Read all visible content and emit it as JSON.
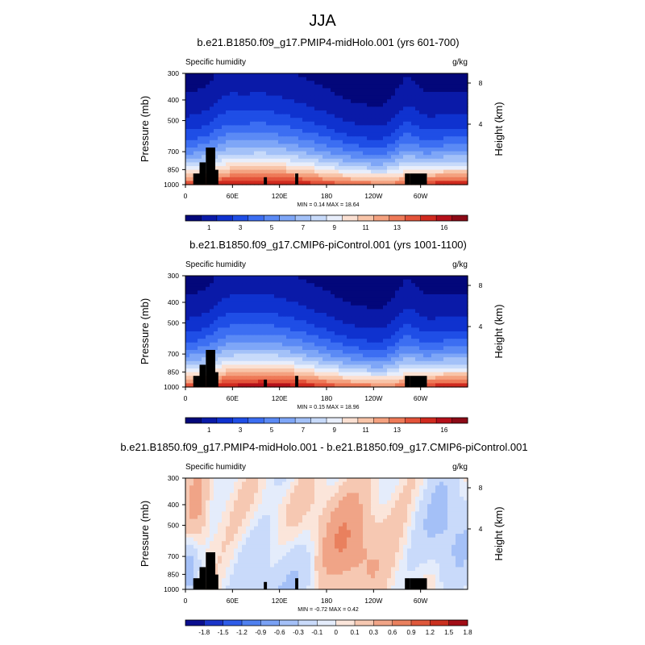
{
  "figure": {
    "title": "JJA",
    "width_label": "",
    "palette": {
      "abs": [
        "#03077a",
        "#0a1aa8",
        "#0f32cf",
        "#1f4ee6",
        "#3c6ef2",
        "#5b8af5",
        "#7ea6f7",
        "#a3c1f8",
        "#c7dafa",
        "#e8eefb",
        "#fbe0d2",
        "#f8c4a8",
        "#f4a17f",
        "#ee7a58",
        "#e3533a",
        "#d02a1f",
        "#b5101a",
        "#8c0a16"
      ],
      "diff": [
        "#0a0e8e",
        "#1a35c8",
        "#2e5ce8",
        "#4f80ef",
        "#7aa1f4",
        "#a4c0f7",
        "#c9dafa",
        "#e4ecfb",
        "#fbe5da",
        "#f6c8b2",
        "#f0a487",
        "#e9805e",
        "#de583c",
        "#c9301f",
        "#a20d16"
      ]
    }
  },
  "chart_data": [
    {
      "id": "panel1",
      "type": "heatmap",
      "title": "b.e21.B1850.f09_g17.PMIP4-midHolo.001 (yrs 601-700)",
      "left_label": "Specific humidity",
      "right_label": "g/kg",
      "ylabel": "Pressure (mb)",
      "y2label": "Height (km)",
      "xlim": [
        0,
        360
      ],
      "ylim": [
        1000,
        300
      ],
      "x_ticks": [
        "0",
        "60E",
        "120E",
        "180",
        "120W",
        "60W"
      ],
      "x_tick_values": [
        0,
        60,
        120,
        180,
        240,
        300
      ],
      "y_ticks": [
        "300",
        "400",
        "500",
        "700",
        "850",
        "1000"
      ],
      "y_tick_values": [
        300,
        400,
        500,
        700,
        850,
        1000
      ],
      "y2_ticks": [
        "8",
        "4"
      ],
      "minmax_text": "MIN =  0.14  MAX =  18.64",
      "min": 0.14,
      "max": 18.64,
      "levels": [
        0,
        1,
        2,
        3,
        4,
        5,
        6,
        7,
        8,
        9,
        10,
        11,
        12,
        13,
        14,
        15,
        16,
        17
      ],
      "colorbar_labels": [
        "1",
        "3",
        "5",
        "7",
        "9",
        "11",
        "13",
        "16"
      ],
      "colorbar_label_values": [
        1,
        3,
        5,
        7,
        9,
        11,
        13,
        16
      ],
      "cmap": "abs"
    },
    {
      "id": "panel2",
      "type": "heatmap",
      "title": "b.e21.B1850.f09_g17.CMIP6-piControl.001 (yrs 1001-1100)",
      "left_label": "Specific humidity",
      "right_label": "g/kg",
      "ylabel": "Pressure (mb)",
      "y2label": "Height (km)",
      "xlim": [
        0,
        360
      ],
      "ylim": [
        1000,
        300
      ],
      "x_ticks": [
        "0",
        "60E",
        "120E",
        "180",
        "120W",
        "60W"
      ],
      "x_tick_values": [
        0,
        60,
        120,
        180,
        240,
        300
      ],
      "y_ticks": [
        "300",
        "400",
        "500",
        "700",
        "850",
        "1000"
      ],
      "y_tick_values": [
        300,
        400,
        500,
        700,
        850,
        1000
      ],
      "y2_ticks": [
        "8",
        "4"
      ],
      "minmax_text": "MIN =  0.15  MAX =  18.96",
      "min": 0.15,
      "max": 18.96,
      "levels": [
        0,
        1,
        2,
        3,
        4,
        5,
        6,
        7,
        8,
        9,
        10,
        11,
        12,
        13,
        14,
        15,
        16,
        17
      ],
      "colorbar_labels": [
        "1",
        "3",
        "5",
        "7",
        "9",
        "11",
        "13",
        "16"
      ],
      "colorbar_label_values": [
        1,
        3,
        5,
        7,
        9,
        11,
        13,
        16
      ],
      "cmap": "abs"
    },
    {
      "id": "panel3",
      "type": "heatmap",
      "title": "b.e21.B1850.f09_g17.PMIP4-midHolo.001 - b.e21.B1850.f09_g17.CMIP6-piControl.001",
      "left_label": "Specific humidity",
      "right_label": "g/kg",
      "ylabel": "Pressure (mb)",
      "y2label": "Height (km)",
      "xlim": [
        0,
        360
      ],
      "ylim": [
        1000,
        300
      ],
      "x_ticks": [
        "0",
        "60E",
        "120E",
        "180",
        "120W",
        "60W"
      ],
      "x_tick_values": [
        0,
        60,
        120,
        180,
        240,
        300
      ],
      "y_ticks": [
        "300",
        "400",
        "500",
        "700",
        "850",
        "1000"
      ],
      "y_tick_values": [
        300,
        400,
        500,
        700,
        850,
        1000
      ],
      "y2_ticks": [
        "8",
        "4"
      ],
      "minmax_text": "MIN = -0.72  MAX =  0.42",
      "min": -0.72,
      "max": 0.42,
      "levels": [
        -2.1,
        -1.8,
        -1.5,
        -1.2,
        -0.9,
        -0.6,
        -0.3,
        -0.1,
        0,
        0.1,
        0.3,
        0.6,
        0.9,
        1.2,
        1.5,
        1.8
      ],
      "colorbar_labels": [
        "-1.8",
        "-1.5",
        "-1.2",
        "-0.9",
        "-0.6",
        "-0.3",
        "-0.1",
        "0",
        "0.1",
        "0.3",
        "0.6",
        "0.9",
        "1.2",
        "1.5",
        "1.8"
      ],
      "colorbar_label_values": [
        -1.8,
        -1.5,
        -1.2,
        -0.9,
        -0.6,
        -0.3,
        -0.1,
        0,
        0.1,
        0.3,
        0.6,
        0.9,
        1.2,
        1.5,
        1.8
      ],
      "cmap": "diff"
    }
  ]
}
